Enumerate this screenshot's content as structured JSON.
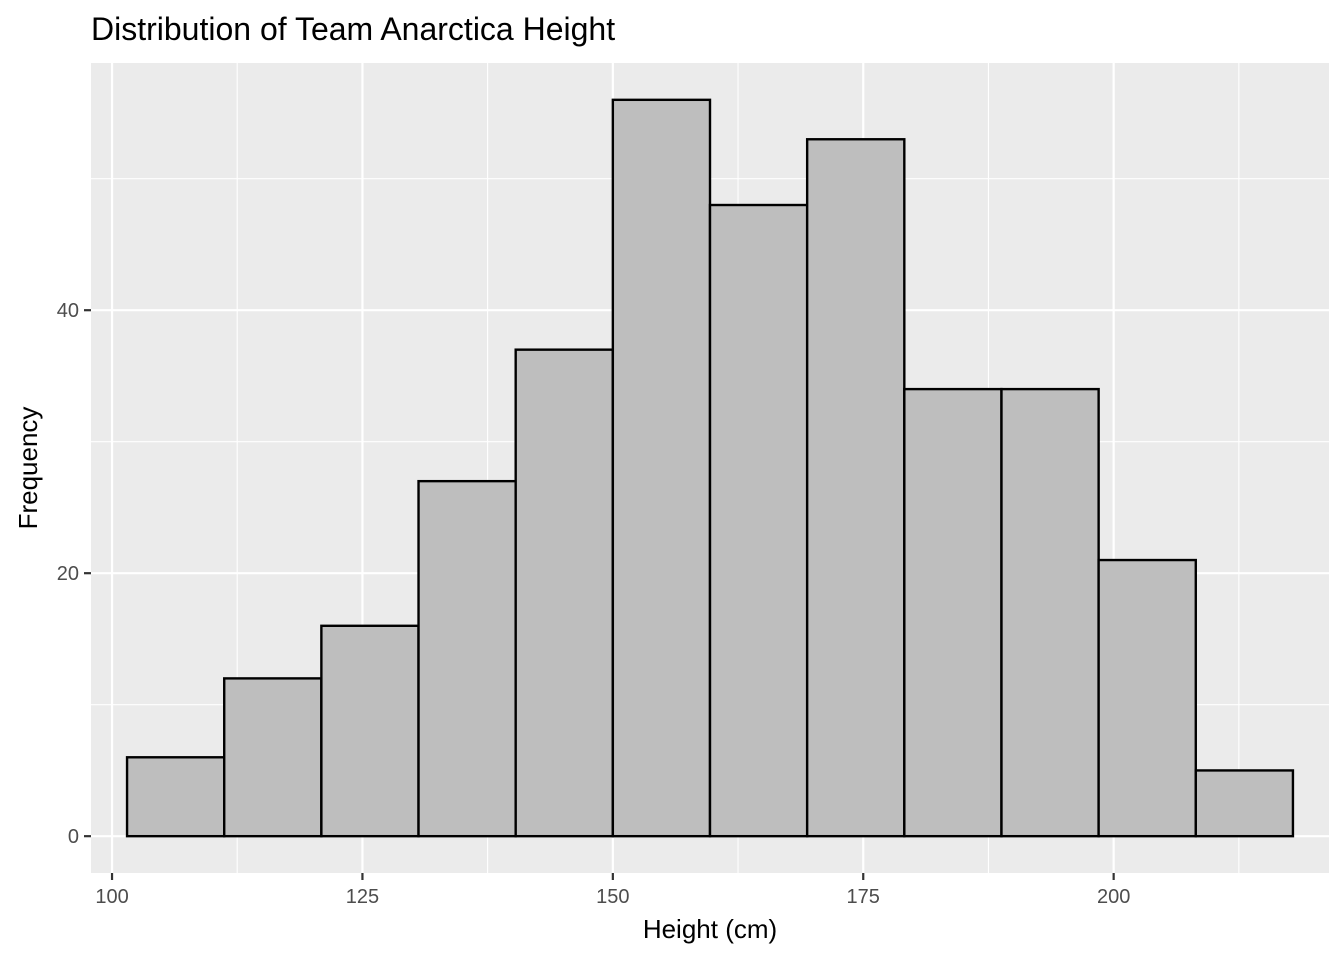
{
  "chart_data": {
    "type": "bar",
    "title": "Distribution of Team Anarctica Height",
    "xlabel": "Height (cm)",
    "ylabel": "Frequency",
    "bin_edges": [
      101.5,
      111.2,
      120.9,
      130.6,
      140.3,
      150.0,
      159.7,
      169.4,
      179.1,
      188.8,
      198.5,
      208.2,
      217.9
    ],
    "values": [
      6,
      12,
      16,
      27,
      37,
      56,
      48,
      53,
      34,
      34,
      21,
      5
    ],
    "xlim": [
      97.9,
      221.5
    ],
    "ylim": [
      -2.8,
      58.8
    ],
    "x_ticks": [
      100,
      125,
      150,
      175,
      200
    ],
    "x_tick_labels": [
      "100",
      "125",
      "150",
      "175",
      "200"
    ],
    "y_ticks": [
      0,
      20,
      40
    ],
    "y_tick_labels": [
      "0",
      "20",
      "40"
    ],
    "grid": true,
    "legend": "none",
    "colors": {
      "panel_background": "#ebebeb",
      "grid_line": "#ffffff",
      "bar_fill": "#bebebe",
      "bar_outline": "#000000",
      "tick_text": "#4d4d4d",
      "tick_mark": "#333333"
    }
  }
}
